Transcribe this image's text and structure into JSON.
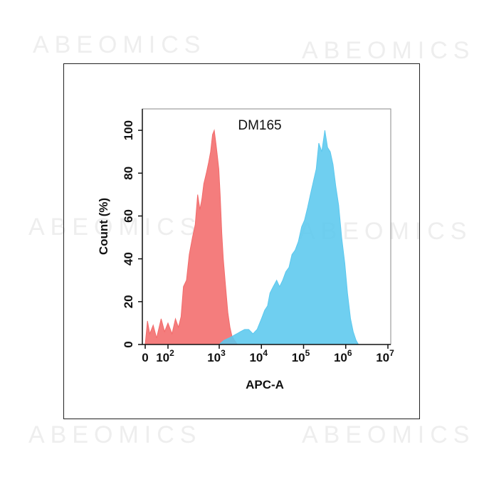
{
  "watermark": "ABEOMICS",
  "chart_data": {
    "type": "area",
    "title": "DM165",
    "xlabel": "APC-A",
    "ylabel": "Count  (%)",
    "x_scale": "biexponential",
    "xlim": [
      0,
      10000000
    ],
    "ylim": [
      0,
      110
    ],
    "y_ticks": [
      0,
      20,
      40,
      60,
      80,
      100
    ],
    "x_ticks": [
      {
        "value": 0,
        "base": "0",
        "exp": ""
      },
      {
        "value": 100,
        "base": "10",
        "exp": "2"
      },
      {
        "value": 1000,
        "base": "10",
        "exp": "3"
      },
      {
        "value": 10000,
        "base": "10",
        "exp": "4"
      },
      {
        "value": 100000,
        "base": "10",
        "exp": "5"
      },
      {
        "value": 1000000,
        "base": "10",
        "exp": "6"
      },
      {
        "value": 10000000,
        "base": "10",
        "exp": "7"
      }
    ],
    "grid": false,
    "series": [
      {
        "color": "#f26b6b",
        "points": [
          [
            0,
            0
          ],
          [
            10,
            11
          ],
          [
            20,
            5
          ],
          [
            35,
            9
          ],
          [
            50,
            3
          ],
          [
            70,
            12
          ],
          [
            85,
            6
          ],
          [
            100,
            10
          ],
          [
            120,
            5
          ],
          [
            140,
            12
          ],
          [
            160,
            8
          ],
          [
            180,
            13
          ],
          [
            200,
            27
          ],
          [
            230,
            30
          ],
          [
            260,
            42
          ],
          [
            300,
            50
          ],
          [
            340,
            56
          ],
          [
            380,
            70
          ],
          [
            420,
            63
          ],
          [
            460,
            68
          ],
          [
            500,
            75
          ],
          [
            560,
            80
          ],
          [
            620,
            85
          ],
          [
            680,
            90
          ],
          [
            740,
            98
          ],
          [
            800,
            100
          ],
          [
            860,
            94
          ],
          [
            920,
            88
          ],
          [
            980,
            82
          ],
          [
            1050,
            70
          ],
          [
            1150,
            52
          ],
          [
            1250,
            40
          ],
          [
            1400,
            28
          ],
          [
            1600,
            15
          ],
          [
            1800,
            8
          ],
          [
            2000,
            4
          ],
          [
            2300,
            2
          ],
          [
            2700,
            0
          ]
        ]
      },
      {
        "color": "#5bc8ee",
        "points": [
          [
            1000,
            0
          ],
          [
            1300,
            2
          ],
          [
            1700,
            3
          ],
          [
            2100,
            4
          ],
          [
            2600,
            5
          ],
          [
            3200,
            6
          ],
          [
            4000,
            7
          ],
          [
            5000,
            7
          ],
          [
            6300,
            5
          ],
          [
            7900,
            7
          ],
          [
            10000,
            12
          ],
          [
            12000,
            16
          ],
          [
            14000,
            18
          ],
          [
            16000,
            24
          ],
          [
            19000,
            27
          ],
          [
            23000,
            30
          ],
          [
            27000,
            27
          ],
          [
            32000,
            30
          ],
          [
            38000,
            34
          ],
          [
            45000,
            36
          ],
          [
            53000,
            42
          ],
          [
            63000,
            44
          ],
          [
            75000,
            48
          ],
          [
            90000,
            55
          ],
          [
            105000,
            58
          ],
          [
            125000,
            64
          ],
          [
            145000,
            70
          ],
          [
            170000,
            76
          ],
          [
            200000,
            82
          ],
          [
            230000,
            94
          ],
          [
            270000,
            90
          ],
          [
            320000,
            100
          ],
          [
            370000,
            92
          ],
          [
            430000,
            90
          ],
          [
            500000,
            84
          ],
          [
            580000,
            74
          ],
          [
            680000,
            65
          ],
          [
            800000,
            50
          ],
          [
            950000,
            38
          ],
          [
            1100000,
            24
          ],
          [
            1300000,
            12
          ],
          [
            1500000,
            6
          ],
          [
            1750000,
            2
          ],
          [
            2000000,
            0
          ]
        ]
      }
    ]
  }
}
